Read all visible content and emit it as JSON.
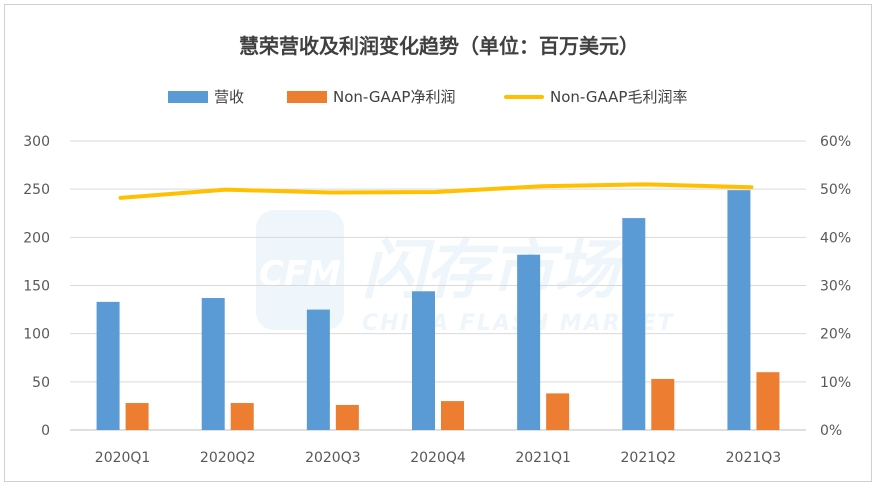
{
  "chart_data": {
    "type": "bar",
    "title": "慧荣营收及利润变化趋势（单位：百万美元）",
    "categories": [
      "2020Q1",
      "2020Q2",
      "2020Q3",
      "2020Q4",
      "2021Q1",
      "2021Q2",
      "2021Q3"
    ],
    "series": [
      {
        "name": "营收",
        "type": "bar",
        "axis": "left",
        "color": "#5B9BD5",
        "values": [
          133,
          137,
          125,
          144,
          182,
          220,
          249
        ]
      },
      {
        "name": "Non-GAAP净利润",
        "type": "bar",
        "axis": "left",
        "color": "#ED7D31",
        "values": [
          28,
          28,
          26,
          30,
          38,
          53,
          60
        ]
      },
      {
        "name": "Non-GAAP毛利润率",
        "type": "line",
        "axis": "right",
        "color": "#FFC000",
        "values": [
          48.2,
          49.9,
          49.3,
          49.4,
          50.6,
          51.0,
          50.4
        ]
      }
    ],
    "yleft": {
      "lim": [
        0,
        300
      ],
      "ticks": [
        "0",
        "50",
        "100",
        "150",
        "200",
        "250",
        "300"
      ]
    },
    "yright": {
      "lim": [
        0,
        60
      ],
      "ticks": [
        "0%",
        "10%",
        "20%",
        "30%",
        "40%",
        "50%",
        "60%"
      ]
    },
    "grid": true,
    "legend_position": "top",
    "watermark": {
      "logo": "CFM",
      "cn": "闪存市场",
      "en": "CHINA FLASH MARKET"
    }
  }
}
